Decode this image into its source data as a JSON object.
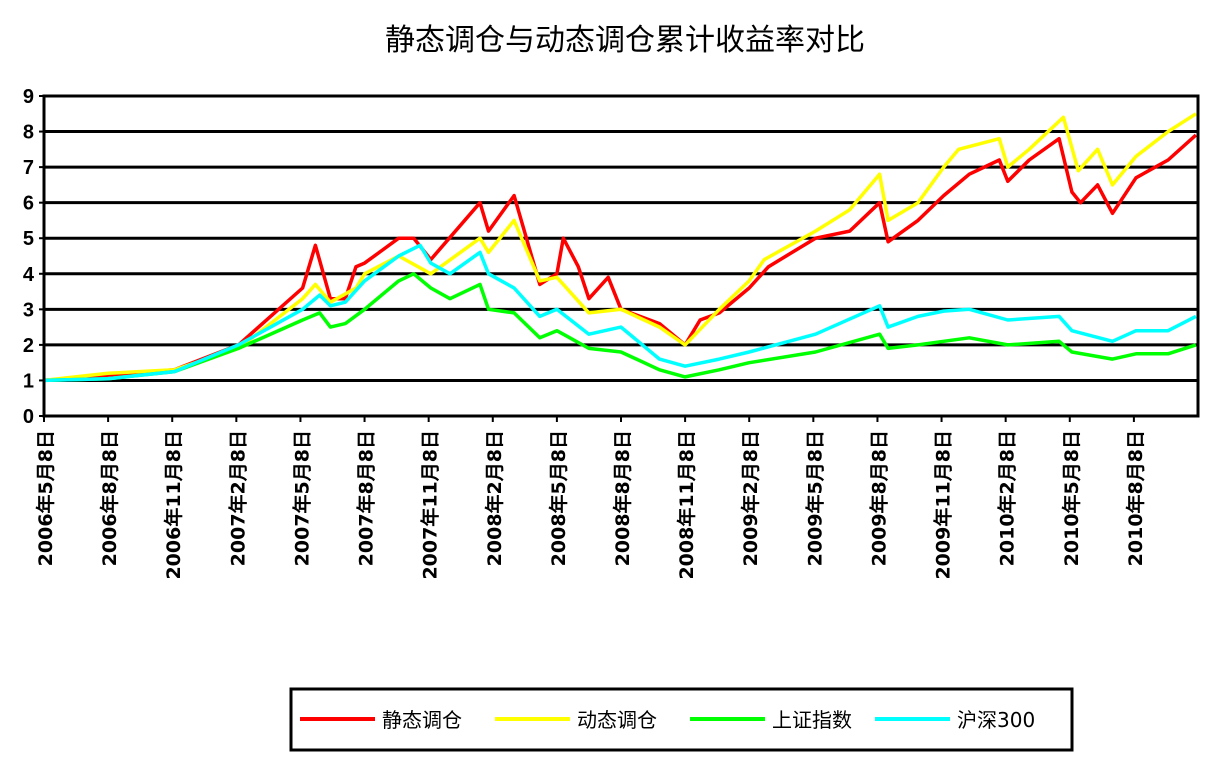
{
  "chart_data": {
    "type": "line",
    "title": "静态调仓与动态调仓累计收益率对比",
    "xlabel": "",
    "ylabel": "",
    "x_unit": "months since 2006年5月8日",
    "xlim": [
      0,
      54
    ],
    "ylim": [
      0,
      9
    ],
    "yticks": [
      "0",
      "1",
      "2",
      "3",
      "4",
      "5",
      "6",
      "7",
      "8",
      "9"
    ],
    "grid": true,
    "legend_position": "bottom",
    "xtick_labels": [
      "2006年5月8日",
      "2006年8月8日",
      "2006年11月8日",
      "2007年2月8日",
      "2007年5月8日",
      "2007年8月8日",
      "2007年11月8日",
      "2008年2月8日",
      "2008年5月8日",
      "2008年8月8日",
      "2008年11月8日",
      "2009年2月8日",
      "2009年5月8日",
      "2009年8月8日",
      "2009年11月8日",
      "2010年2月8日",
      "2010年5月8日",
      "2010年8月8日"
    ],
    "series": [
      {
        "name": "静态调仓",
        "color": "#ff0000",
        "points": [
          [
            0,
            1.0
          ],
          [
            3,
            1.15
          ],
          [
            6.1,
            1.3
          ],
          [
            9.1,
            2.0
          ],
          [
            12.1,
            3.6
          ],
          [
            12.7,
            4.8
          ],
          [
            13.4,
            3.3
          ],
          [
            14.1,
            3.3
          ],
          [
            14.6,
            4.2
          ],
          [
            15,
            4.3
          ],
          [
            16.6,
            5.0
          ],
          [
            17.3,
            5.0
          ],
          [
            18.1,
            4.4
          ],
          [
            20.4,
            6.0
          ],
          [
            20.8,
            5.2
          ],
          [
            22,
            6.2
          ],
          [
            23.2,
            3.7
          ],
          [
            24,
            4.0
          ],
          [
            24.3,
            5.0
          ],
          [
            25,
            4.2
          ],
          [
            25.5,
            3.3
          ],
          [
            26.4,
            3.9
          ],
          [
            27,
            3.0
          ],
          [
            28.8,
            2.6
          ],
          [
            30,
            2.0
          ],
          [
            30.7,
            2.7
          ],
          [
            31.6,
            2.9
          ],
          [
            33,
            3.6
          ],
          [
            33.9,
            4.2
          ],
          [
            36.1,
            5.0
          ],
          [
            37.7,
            5.2
          ],
          [
            39.1,
            6.0
          ],
          [
            39.5,
            4.9
          ],
          [
            40.9,
            5.5
          ],
          [
            42.1,
            6.2
          ],
          [
            43.3,
            6.8
          ],
          [
            44.7,
            7.2
          ],
          [
            45.1,
            6.6
          ],
          [
            46.1,
            7.2
          ],
          [
            47.5,
            7.8
          ],
          [
            48.1,
            6.3
          ],
          [
            48.5,
            6.0
          ],
          [
            49.3,
            6.5
          ],
          [
            50,
            5.7
          ],
          [
            51.1,
            6.7
          ],
          [
            52.6,
            7.2
          ],
          [
            53.9,
            7.9
          ]
        ]
      },
      {
        "name": "动态调仓",
        "color": "#ffff00",
        "points": [
          [
            0,
            1.0
          ],
          [
            3,
            1.2
          ],
          [
            6.1,
            1.3
          ],
          [
            9.1,
            1.9
          ],
          [
            12.1,
            3.3
          ],
          [
            12.7,
            3.7
          ],
          [
            13.4,
            3.2
          ],
          [
            14.6,
            3.6
          ],
          [
            15,
            4.0
          ],
          [
            16.6,
            4.5
          ],
          [
            18.1,
            4.0
          ],
          [
            20.4,
            5.0
          ],
          [
            20.8,
            4.6
          ],
          [
            22,
            5.5
          ],
          [
            23.2,
            3.8
          ],
          [
            24,
            3.9
          ],
          [
            25.5,
            2.9
          ],
          [
            27,
            3.0
          ],
          [
            28.8,
            2.5
          ],
          [
            30,
            2.0
          ],
          [
            31.6,
            3.0
          ],
          [
            33,
            3.8
          ],
          [
            33.7,
            4.4
          ],
          [
            36.1,
            5.2
          ],
          [
            37.7,
            5.8
          ],
          [
            39.1,
            6.8
          ],
          [
            39.5,
            5.5
          ],
          [
            40.9,
            6.0
          ],
          [
            42.1,
            7.0
          ],
          [
            42.8,
            7.5
          ],
          [
            44.7,
            7.8
          ],
          [
            45.1,
            7.0
          ],
          [
            46.1,
            7.5
          ],
          [
            47.7,
            8.4
          ],
          [
            48.4,
            6.9
          ],
          [
            49.3,
            7.5
          ],
          [
            50,
            6.5
          ],
          [
            51.1,
            7.3
          ],
          [
            52.6,
            8.0
          ],
          [
            53.9,
            8.5
          ]
        ]
      },
      {
        "name": "上证指数",
        "color": "#00ff00",
        "points": [
          [
            0,
            1.0
          ],
          [
            3,
            1.05
          ],
          [
            6.1,
            1.25
          ],
          [
            9.1,
            1.9
          ],
          [
            12.1,
            2.7
          ],
          [
            12.9,
            2.9
          ],
          [
            13.4,
            2.5
          ],
          [
            14.1,
            2.6
          ],
          [
            15,
            3.0
          ],
          [
            16.6,
            3.8
          ],
          [
            17.3,
            4.0
          ],
          [
            18.1,
            3.6
          ],
          [
            19,
            3.3
          ],
          [
            20.4,
            3.7
          ],
          [
            20.8,
            3.0
          ],
          [
            22,
            2.9
          ],
          [
            23.2,
            2.2
          ],
          [
            24,
            2.4
          ],
          [
            25.5,
            1.9
          ],
          [
            27,
            1.8
          ],
          [
            28.8,
            1.3
          ],
          [
            30,
            1.1
          ],
          [
            31.6,
            1.3
          ],
          [
            33,
            1.5
          ],
          [
            36.1,
            1.8
          ],
          [
            39.1,
            2.3
          ],
          [
            39.5,
            1.9
          ],
          [
            40.9,
            2.0
          ],
          [
            42.1,
            2.1
          ],
          [
            43.3,
            2.2
          ],
          [
            45.1,
            2.0
          ],
          [
            47.5,
            2.1
          ],
          [
            48.1,
            1.8
          ],
          [
            50,
            1.6
          ],
          [
            51.1,
            1.75
          ],
          [
            52.6,
            1.75
          ],
          [
            53.9,
            2.0
          ]
        ]
      },
      {
        "name": "沪深300",
        "color": "#00ffff",
        "points": [
          [
            0,
            1.0
          ],
          [
            3,
            1.05
          ],
          [
            6.1,
            1.25
          ],
          [
            9.1,
            2.0
          ],
          [
            12.1,
            3.0
          ],
          [
            12.9,
            3.4
          ],
          [
            13.4,
            3.1
          ],
          [
            14.1,
            3.2
          ],
          [
            15,
            3.8
          ],
          [
            16.6,
            4.5
          ],
          [
            17.6,
            4.8
          ],
          [
            18.1,
            4.3
          ],
          [
            19,
            4.0
          ],
          [
            20.4,
            4.6
          ],
          [
            20.8,
            4.0
          ],
          [
            22,
            3.6
          ],
          [
            23.2,
            2.8
          ],
          [
            24,
            3.0
          ],
          [
            25.5,
            2.3
          ],
          [
            27,
            2.5
          ],
          [
            28.8,
            1.6
          ],
          [
            30,
            1.4
          ],
          [
            31.6,
            1.6
          ],
          [
            33,
            1.8
          ],
          [
            36.1,
            2.3
          ],
          [
            39.1,
            3.1
          ],
          [
            39.5,
            2.5
          ],
          [
            40.9,
            2.8
          ],
          [
            42.1,
            2.95
          ],
          [
            43.3,
            3.0
          ],
          [
            45.1,
            2.7
          ],
          [
            47.5,
            2.8
          ],
          [
            48.1,
            2.4
          ],
          [
            50,
            2.1
          ],
          [
            51.1,
            2.4
          ],
          [
            52.6,
            2.4
          ],
          [
            53.9,
            2.8
          ]
        ]
      }
    ]
  }
}
